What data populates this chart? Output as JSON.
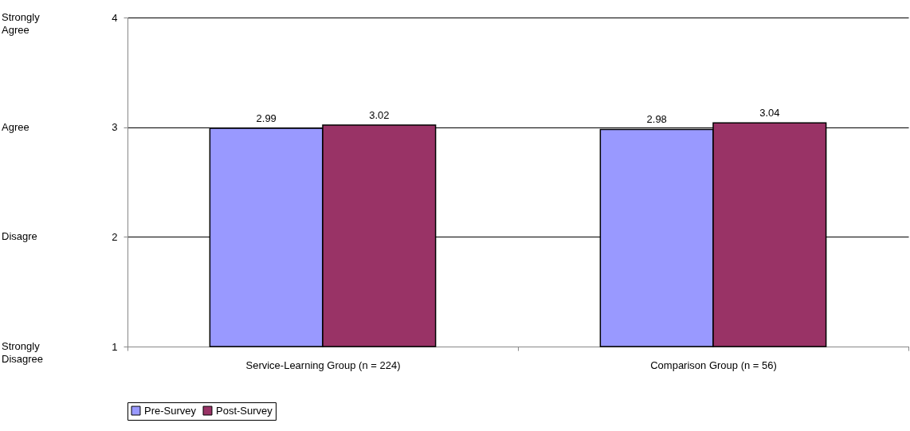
{
  "chart_data": {
    "type": "bar",
    "categories": [
      "Service-Learning Group (n = 224)",
      "Comparison Group (n = 56)"
    ],
    "series": [
      {
        "name": "Pre-Survey",
        "color": "#9999ff",
        "values": [
          2.99,
          2.98
        ]
      },
      {
        "name": "Post-Survey",
        "color": "#993366",
        "values": [
          3.02,
          3.04
        ]
      }
    ],
    "ylim": [
      1,
      4
    ],
    "yticks": [
      1,
      2,
      3,
      4
    ],
    "grid": "y",
    "legend": "bottom",
    "data_labels": true,
    "annotations": [
      "Strongly Disagree",
      "Disagre",
      "Agree",
      "Strongly Agree"
    ]
  }
}
